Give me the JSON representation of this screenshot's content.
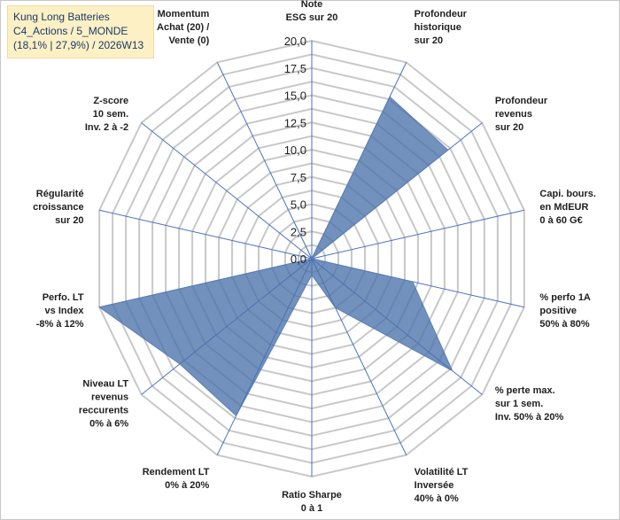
{
  "chart_data": {
    "type": "radar",
    "title": [
      "Kung Long Batteries",
      "C4_Actions / 5_MONDE",
      "(18,1% | 27,9%) / 2026W13"
    ],
    "rlim": [
      0,
      20
    ],
    "ticks": [
      "0,0",
      "2,5",
      "5,0",
      "7,5",
      "10,0",
      "12,5",
      "15,0",
      "17,5",
      "20,0"
    ],
    "axes": [
      {
        "label": [
          "Note",
          "ESG sur 20"
        ],
        "value": 0
      },
      {
        "label": [
          "Profondeur",
          "historique",
          "sur 20"
        ],
        "value": 16.5
      },
      {
        "label": [
          "Profondeur",
          "revenus",
          "sur 20"
        ],
        "value": 16.0
      },
      {
        "label": [
          "Capi. bours.",
          "en MdEUR",
          "0 à 60 G€"
        ],
        "value": 0
      },
      {
        "label": [
          "% perfo 1A",
          "positive",
          "50% à 80%"
        ],
        "value": 9.5
      },
      {
        "label": [
          "% perte max.",
          "sur 1 sem.",
          "Inv. 50% à 20%"
        ],
        "value": 16.5
      },
      {
        "label": [
          "Volatilité LT",
          "Inversée",
          "40% à 0%"
        ],
        "value": 5.0
      },
      {
        "label": [
          "Ratio Sharpe",
          "0 à 1"
        ],
        "value": 1.5
      },
      {
        "label": [
          "Rendement LT",
          "0% à 20%"
        ],
        "value": 16.0
      },
      {
        "label": [
          "Niveau LT",
          "revenus",
          "reccurents",
          "0% à 6%"
        ],
        "value": 15.5
      },
      {
        "label": [
          "Perfo. LT",
          "vs Index",
          "-8% à 12%"
        ],
        "value": 20.0
      },
      {
        "label": [
          "Régularité",
          "croissance",
          "sur 20"
        ],
        "value": 0
      },
      {
        "label": [
          "Z-score",
          "10 sem.",
          "Inv. 2 à -2"
        ],
        "value": 0
      },
      {
        "label": [
          "Momentum",
          "Achat (20) /",
          "Vente (0)"
        ],
        "value": 4.0
      }
    ],
    "series_color": "#5b7fb5",
    "series_fill": "#4a72aa",
    "grid_color": "#c8c8c8",
    "axis_color": "#4a72c4"
  }
}
